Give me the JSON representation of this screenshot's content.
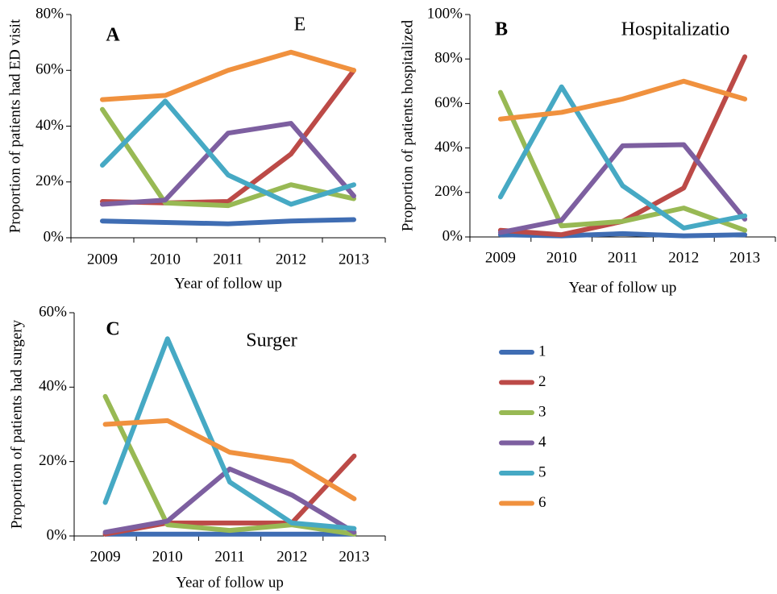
{
  "chart_data": [
    {
      "type": "line",
      "label": "A",
      "title": "E",
      "ylabel": "Proportion of patients had ED visit",
      "xlabel": "Year of follow up",
      "categories": [
        "2009",
        "2010",
        "2011",
        "2012",
        "2013"
      ],
      "ylim": [
        0,
        80
      ],
      "yticks": [
        {
          "value": 0,
          "label": "0%"
        },
        {
          "value": 20,
          "label": "20%"
        },
        {
          "value": 40,
          "label": "40%"
        },
        {
          "value": 60,
          "label": "60%"
        },
        {
          "value": 80,
          "label": "80%"
        }
      ],
      "series": [
        {
          "name": "1",
          "color": "#3f6db3",
          "values": [
            6,
            5.5,
            5,
            6,
            6.5
          ]
        },
        {
          "name": "2",
          "color": "#bc4a47",
          "values": [
            13,
            12.5,
            13,
            30,
            60
          ]
        },
        {
          "name": "3",
          "color": "#98b954",
          "values": [
            46,
            12.5,
            11.5,
            19,
            14
          ]
        },
        {
          "name": "4",
          "color": "#7d5fa0",
          "values": [
            12,
            13.5,
            37.5,
            41,
            15
          ]
        },
        {
          "name": "5",
          "color": "#46a9c4",
          "values": [
            26,
            49,
            22.5,
            12,
            19
          ]
        },
        {
          "name": "6",
          "color": "#f0913e",
          "values": [
            49.5,
            51,
            60,
            66.5,
            60
          ]
        }
      ]
    },
    {
      "type": "line",
      "label": "B",
      "title": "Hospitalizatio",
      "ylabel": "Proportion of patients hospitalized",
      "xlabel": "Year of follow up",
      "categories": [
        "2009",
        "2010",
        "2011",
        "2012",
        "2013"
      ],
      "ylim": [
        0,
        100
      ],
      "yticks": [
        {
          "value": 0,
          "label": "0%"
        },
        {
          "value": 20,
          "label": "20%"
        },
        {
          "value": 40,
          "label": "40%"
        },
        {
          "value": 60,
          "label": "60%"
        },
        {
          "value": 80,
          "label": "80%"
        },
        {
          "value": 100,
          "label": "100%"
        }
      ],
      "series": [
        {
          "name": "1",
          "color": "#3f6db3",
          "values": [
            1,
            0.5,
            1.5,
            0.5,
            1
          ]
        },
        {
          "name": "2",
          "color": "#bc4a47",
          "values": [
            3,
            1,
            7,
            22,
            81
          ]
        },
        {
          "name": "3",
          "color": "#98b954",
          "values": [
            65,
            5,
            7,
            13,
            3
          ]
        },
        {
          "name": "4",
          "color": "#7d5fa0",
          "values": [
            2,
            7.5,
            41,
            41.5,
            8
          ]
        },
        {
          "name": "5",
          "color": "#46a9c4",
          "values": [
            18,
            67.5,
            23,
            4,
            9.5
          ]
        },
        {
          "name": "6",
          "color": "#f0913e",
          "values": [
            53,
            56,
            62,
            70,
            62
          ]
        }
      ]
    },
    {
      "type": "line",
      "label": "C",
      "title": "Surger",
      "ylabel": "Proportion of patients had surgery",
      "xlabel": "Year of follow up",
      "categories": [
        "2009",
        "2010",
        "2011",
        "2012",
        "2013"
      ],
      "ylim": [
        0,
        60
      ],
      "yticks": [
        {
          "value": 0,
          "label": "0%"
        },
        {
          "value": 20,
          "label": "20%"
        },
        {
          "value": 40,
          "label": "40%"
        },
        {
          "value": 60,
          "label": "60%"
        }
      ],
      "series": [
        {
          "name": "1",
          "color": "#3f6db3",
          "values": [
            0.5,
            0.5,
            0.5,
            0.5,
            0.5
          ]
        },
        {
          "name": "2",
          "color": "#bc4a47",
          "values": [
            0.5,
            3.5,
            3.5,
            3.5,
            21.5
          ]
        },
        {
          "name": "3",
          "color": "#98b954",
          "values": [
            37.5,
            3,
            1.5,
            3,
            0.5
          ]
        },
        {
          "name": "4",
          "color": "#7d5fa0",
          "values": [
            1,
            4,
            18,
            11,
            1
          ]
        },
        {
          "name": "5",
          "color": "#46a9c4",
          "values": [
            9,
            53,
            14.5,
            3.5,
            2
          ]
        },
        {
          "name": "6",
          "color": "#f0913e",
          "values": [
            30,
            31,
            22.5,
            20,
            10
          ]
        }
      ]
    }
  ]
}
